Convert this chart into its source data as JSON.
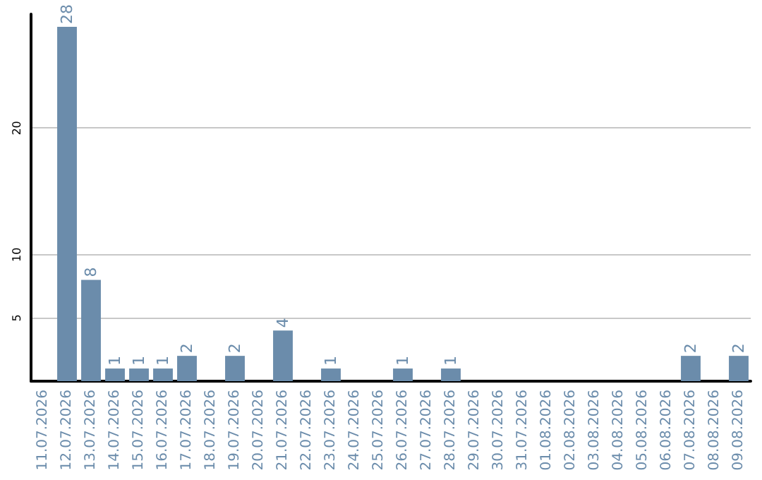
{
  "chart_data": {
    "type": "bar",
    "categories": [
      "11.07.2026",
      "12.07.2026",
      "13.07.2026",
      "14.07.2026",
      "15.07.2026",
      "16.07.2026",
      "17.07.2026",
      "18.07.2026",
      "19.07.2026",
      "20.07.2026",
      "21.07.2026",
      "22.07.2026",
      "23.07.2026",
      "24.07.2026",
      "25.07.2026",
      "26.07.2026",
      "27.07.2026",
      "28.07.2026",
      "29.07.2026",
      "30.07.2026",
      "31.07.2026",
      "01.08.2026",
      "02.08.2026",
      "03.08.2026",
      "04.08.2026",
      "05.08.2026",
      "06.08.2026",
      "07.08.2026",
      "08.08.2026",
      "09.08.2026"
    ],
    "values": [
      0,
      28,
      8,
      1,
      1,
      1,
      2,
      0,
      2,
      0,
      4,
      0,
      1,
      0,
      0,
      1,
      0,
      1,
      0,
      0,
      0,
      0,
      0,
      0,
      0,
      0,
      0,
      2,
      0,
      2
    ],
    "value_labels": [
      null,
      "28",
      "8",
      "1",
      "1",
      "1",
      "2",
      null,
      "2",
      null,
      "4",
      null,
      "1",
      null,
      null,
      "1",
      null,
      "1",
      null,
      null,
      null,
      null,
      null,
      null,
      null,
      null,
      null,
      "2",
      null,
      "2"
    ],
    "color": "#6b8cab",
    "ylim": [
      0,
      29
    ],
    "yticks": [
      5,
      10,
      20
    ],
    "grid": "y"
  }
}
